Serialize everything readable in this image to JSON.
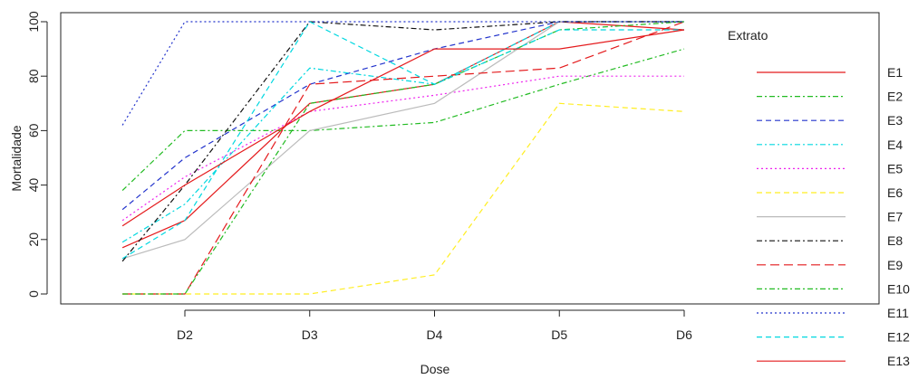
{
  "chart_data": {
    "type": "line",
    "xlabel": "Dose",
    "ylabel": "Mortalidade",
    "categories": [
      "D2",
      "D3",
      "D4",
      "D5",
      "D6"
    ],
    "x_range": [
      0.5,
      5.8
    ],
    "ylim": [
      -3,
      103
    ],
    "yticks": [
      0,
      20,
      40,
      60,
      80,
      100
    ],
    "grid": false,
    "legend": {
      "title": "Extrato",
      "placement": "right"
    },
    "series": [
      {
        "name": "E1",
        "color": "#e41a1c",
        "dash": "solid",
        "x": [
          0.5,
          1,
          2,
          3,
          4,
          5
        ],
        "values": [
          17,
          27,
          70,
          77,
          100,
          97
        ]
      },
      {
        "name": "E2",
        "color": "#22bb22",
        "dash": "dashdot",
        "x": [
          0.5,
          1,
          2,
          3,
          4,
          5
        ],
        "values": [
          38,
          60,
          60,
          63,
          77,
          90
        ]
      },
      {
        "name": "E3",
        "color": "#2233cc",
        "dash": "dash",
        "x": [
          0.5,
          1,
          2,
          3,
          4,
          5
        ],
        "values": [
          31,
          50,
          77,
          90,
          100,
          100
        ]
      },
      {
        "name": "E4",
        "color": "#00d8e0",
        "dash": "dashdot",
        "x": [
          0.5,
          1,
          2,
          3,
          4,
          5
        ],
        "values": [
          19,
          33,
          83,
          77,
          100,
          100
        ]
      },
      {
        "name": "E5",
        "color": "#ee22ee",
        "dash": "dot",
        "x": [
          0.5,
          1,
          2,
          3,
          4,
          5
        ],
        "values": [
          27,
          43,
          67,
          73,
          80,
          80
        ]
      },
      {
        "name": "E6",
        "color": "#ffee22",
        "dash": "dash",
        "x": [
          0.5,
          1,
          2,
          3,
          4,
          5
        ],
        "values": [
          0,
          0,
          0,
          7,
          70,
          67
        ]
      },
      {
        "name": "E7",
        "color": "#bbbbbb",
        "dash": "solid",
        "x": [
          0.5,
          1,
          2,
          3,
          4,
          5
        ],
        "values": [
          13,
          20,
          60,
          70,
          100,
          100
        ]
      },
      {
        "name": "E8",
        "color": "#111111",
        "dash": "dashdot",
        "x": [
          0.5,
          1,
          2,
          3,
          4,
          5
        ],
        "values": [
          12,
          40,
          100,
          97,
          100,
          100
        ]
      },
      {
        "name": "E9",
        "color": "#e41a1c",
        "dash": "longdash",
        "x": [
          0.5,
          1,
          2,
          3,
          4,
          5
        ],
        "values": [
          0,
          0,
          77,
          80,
          83,
          100
        ]
      },
      {
        "name": "E10",
        "color": "#22bb22",
        "dash": "dashdot",
        "x": [
          0.5,
          1,
          2,
          3,
          4,
          5
        ],
        "values": [
          0,
          0,
          70,
          77,
          97,
          100
        ]
      },
      {
        "name": "E11",
        "color": "#2233cc",
        "dash": "dot",
        "x": [
          0.5,
          1,
          2,
          3,
          4,
          5
        ],
        "values": [
          62,
          100,
          100,
          100,
          100,
          100
        ]
      },
      {
        "name": "E12",
        "color": "#00d8e0",
        "dash": "dash",
        "x": [
          0.5,
          1,
          2,
          3,
          4,
          5
        ],
        "values": [
          13,
          27,
          100,
          77,
          97,
          97
        ]
      },
      {
        "name": "E13",
        "color": "#e41a1c",
        "dash": "solid",
        "x": [
          0.5,
          1,
          2,
          3,
          4,
          5
        ],
        "values": [
          25,
          40,
          67,
          90,
          90,
          97
        ]
      }
    ]
  }
}
